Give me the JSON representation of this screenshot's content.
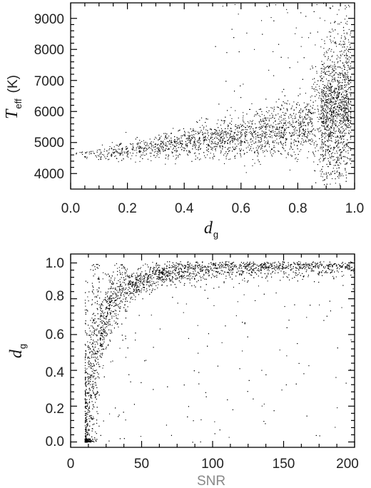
{
  "chart_data": [
    {
      "type": "scatter",
      "title": "",
      "xlabel": {
        "main": "d",
        "sub": "g"
      },
      "ylabel": {
        "main": "T",
        "sub": "eff",
        "unit": "(K)"
      },
      "xlim": [
        0.0,
        1.0
      ],
      "ylim": [
        3500,
        9500
      ],
      "xticks": [
        0.0,
        0.2,
        0.4,
        0.6,
        0.8,
        1.0
      ],
      "xtick_labels": [
        "0.0",
        "0.2",
        "0.4",
        "0.6",
        "0.8",
        "1.0"
      ],
      "yticks": [
        4000,
        5000,
        6000,
        7000,
        8000,
        9000
      ],
      "ytick_labels": [
        "4000",
        "5000",
        "6000",
        "7000",
        "8000",
        "9000"
      ],
      "grid": false,
      "legend": "none",
      "marker_color": "#000000",
      "point_count_approx": 4200,
      "series": [
        {
          "points": [
            [
              0.0,
              4600
            ],
            [
              0.02,
              4610
            ],
            [
              0.05,
              4620
            ],
            [
              0.1,
              4650
            ],
            [
              0.15,
              4700
            ],
            [
              0.2,
              4760
            ],
            [
              0.25,
              4820
            ],
            [
              0.3,
              4880
            ],
            [
              0.35,
              4940
            ],
            [
              0.4,
              5000
            ],
            [
              0.45,
              5050
            ],
            [
              0.5,
              5100
            ],
            [
              0.55,
              5150
            ],
            [
              0.6,
              5200
            ],
            [
              0.65,
              5260
            ],
            [
              0.7,
              5330
            ],
            [
              0.75,
              5420
            ],
            [
              0.8,
              5520
            ],
            [
              0.85,
              5650
            ],
            [
              0.9,
              5800
            ],
            [
              0.95,
              6000
            ],
            [
              0.97,
              6200
            ],
            [
              0.98,
              6400
            ]
          ],
          "trend": "median Teff rises from ~4600 K at d_g=0 to ~6000 K at d_g~0.97; spread widens with d_g, reaching 4000-9500 K near d_g=1"
        }
      ]
    },
    {
      "type": "scatter",
      "title": "",
      "xlabel": "SNR",
      "ylabel": {
        "main": "d",
        "sub": "g"
      },
      "xlim": [
        0,
        200
      ],
      "ylim": [
        -0.03,
        1.05
      ],
      "xticks": [
        0,
        50,
        100,
        150,
        200
      ],
      "xtick_labels": [
        "0",
        "50",
        "100",
        "150",
        "200"
      ],
      "yticks": [
        0.0,
        0.2,
        0.4,
        0.6,
        0.8,
        1.0
      ],
      "ytick_labels": [
        "0.0",
        "0.2",
        "0.4",
        "0.6",
        "0.8",
        "1.0"
      ],
      "grid": false,
      "legend": "none",
      "marker_color": "#000000",
      "point_count_approx": 4200,
      "series": [
        {
          "points": [
            [
              10,
              0.0
            ],
            [
              12,
              0.1
            ],
            [
              14,
              0.3
            ],
            [
              16,
              0.45
            ],
            [
              18,
              0.55
            ],
            [
              20,
              0.62
            ],
            [
              25,
              0.72
            ],
            [
              30,
              0.79
            ],
            [
              40,
              0.86
            ],
            [
              50,
              0.9
            ],
            [
              60,
              0.93
            ],
            [
              80,
              0.955
            ],
            [
              100,
              0.97
            ],
            [
              150,
              0.985
            ],
            [
              200,
              0.99
            ]
          ],
          "trend": "d_g rises steeply from 0 near SNR~10 and saturates near 1.0 above SNR~100; minimum SNR ~10"
        }
      ]
    }
  ]
}
